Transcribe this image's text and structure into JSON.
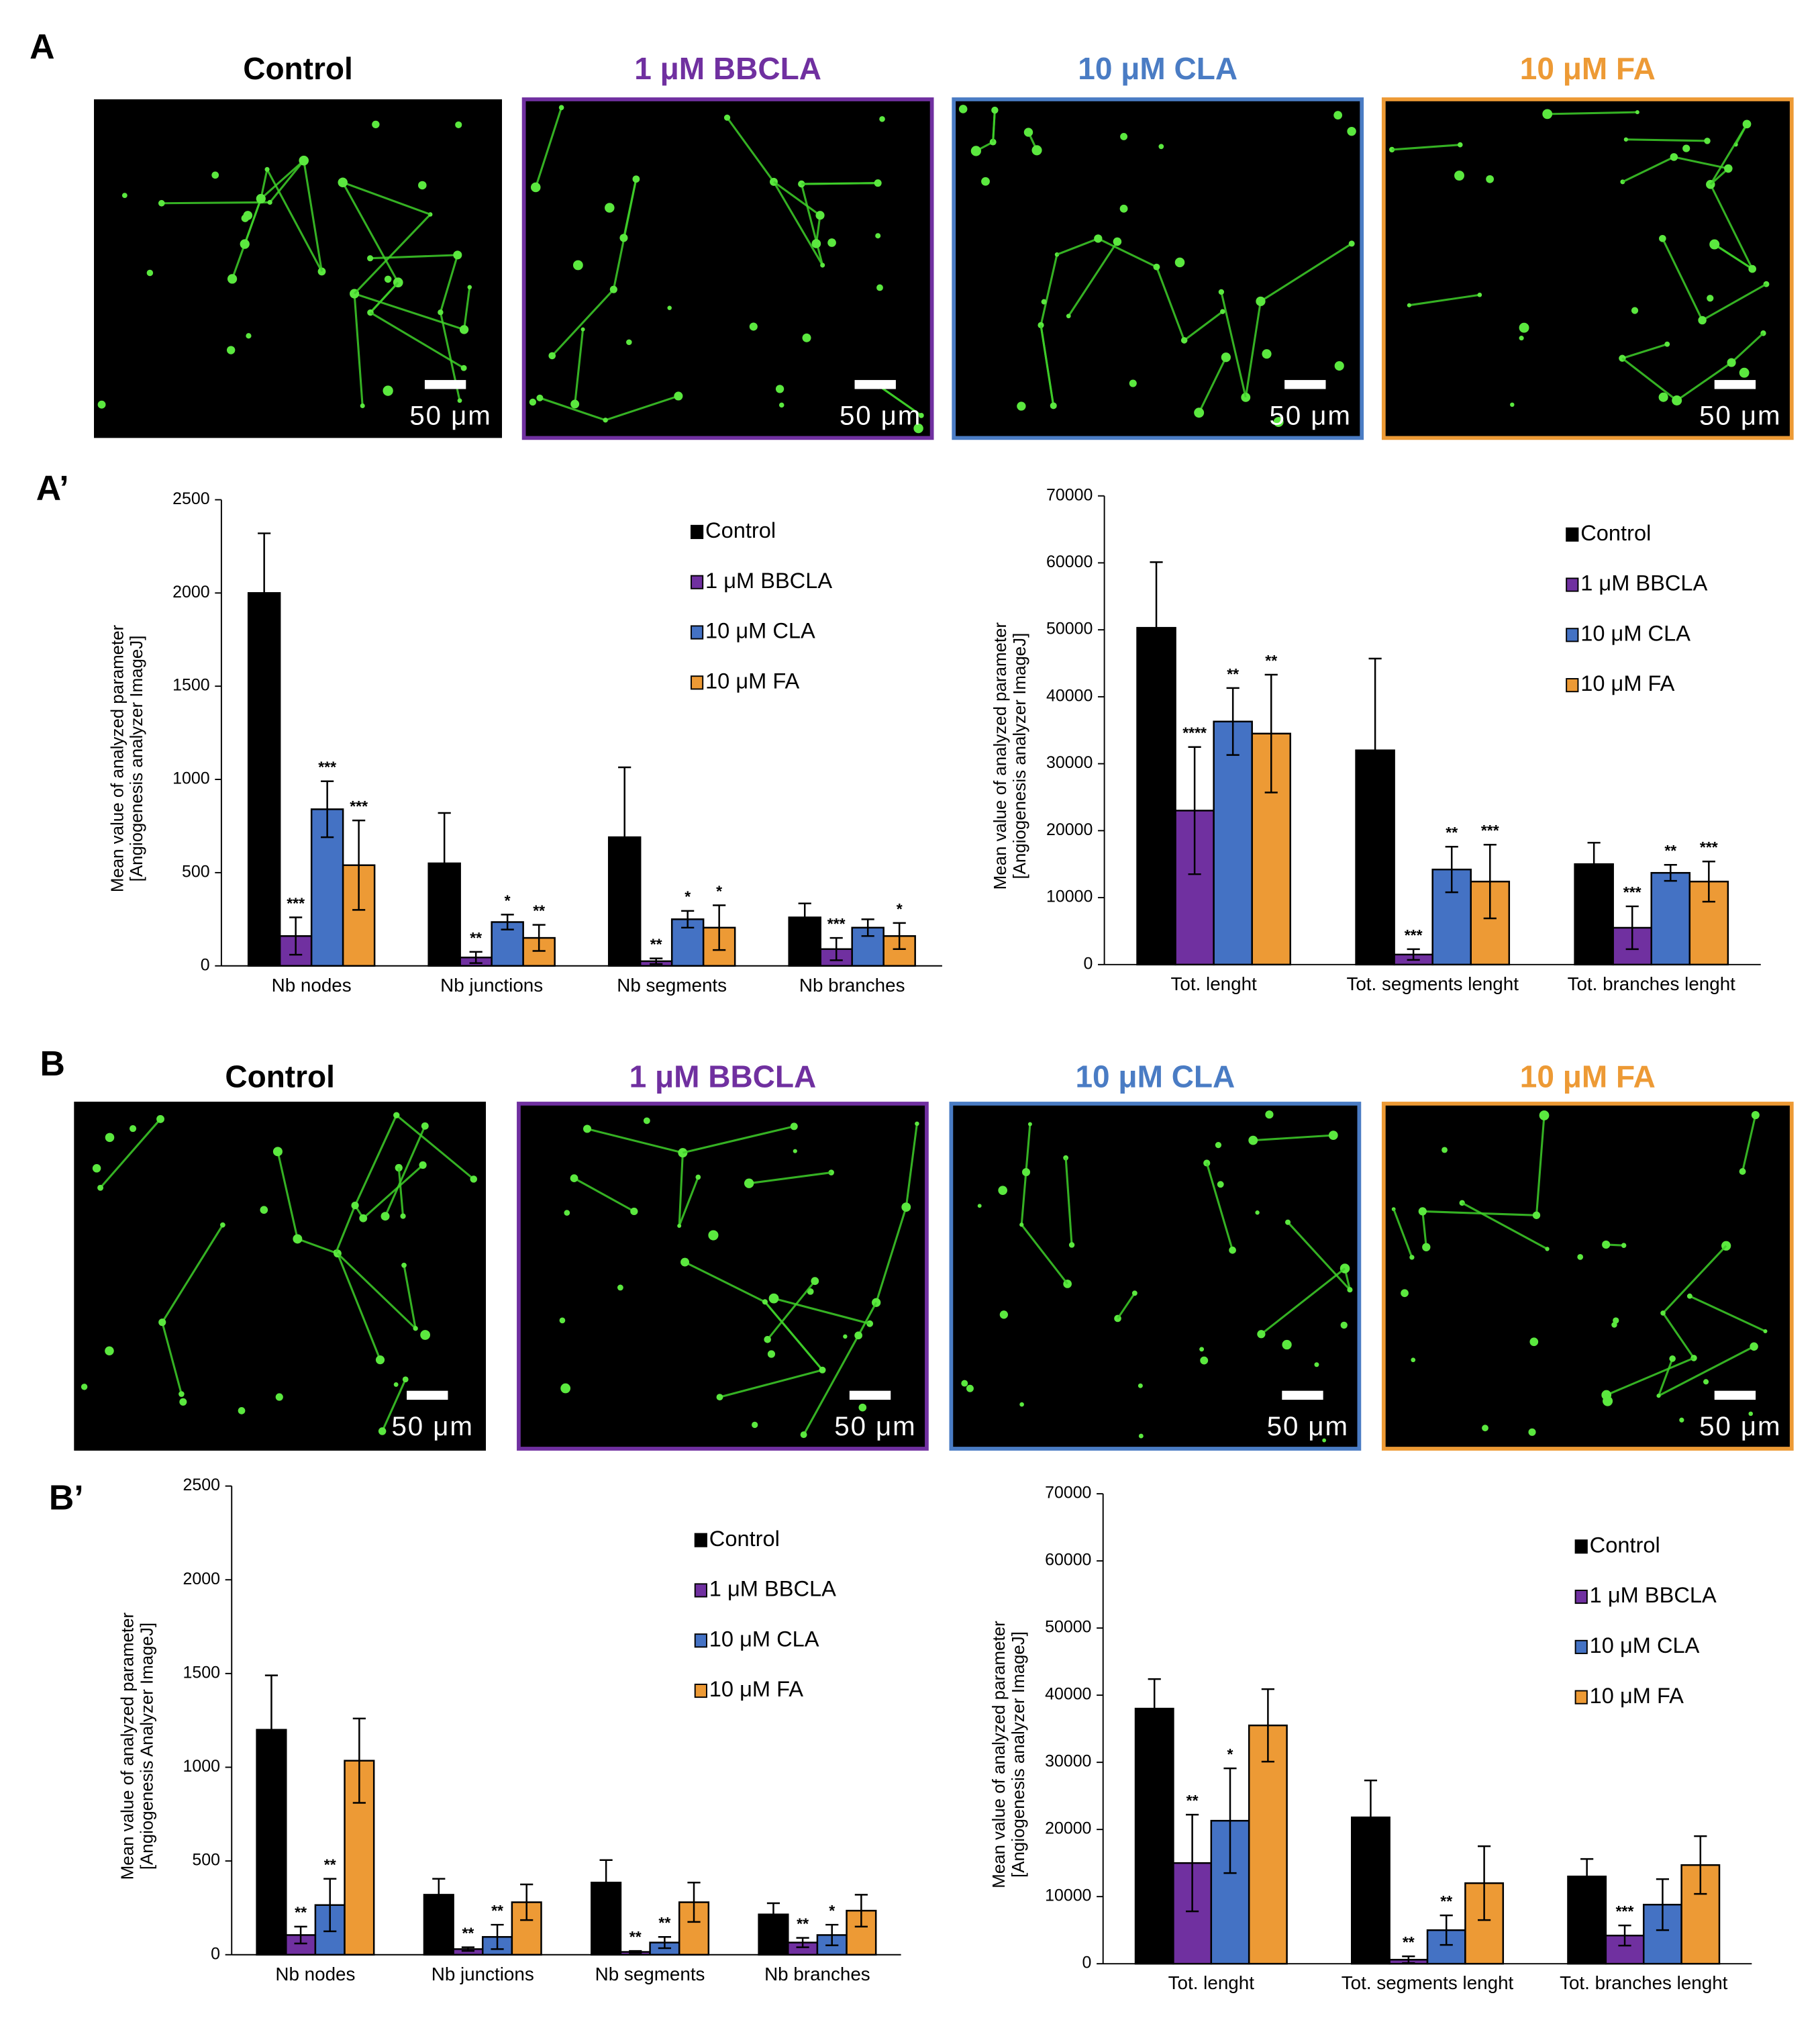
{
  "figure": {
    "labels": [
      "A",
      "A’",
      "B",
      "B’"
    ],
    "rows": [
      {
        "images": [
          {
            "title": "Control",
            "color": "#000000",
            "scale": "50 μm"
          },
          {
            "title": "1 μM BBCLA",
            "color": "#7030a0",
            "scale": "50 μm"
          },
          {
            "title": "10 μM CLA",
            "color": "#4a7cc4",
            "scale": "50 μm"
          },
          {
            "title": "10 μM FA",
            "color": "#ed9a35",
            "scale": "50 μm"
          }
        ]
      },
      {
        "images": [
          {
            "title": "Control",
            "color": "#000000",
            "scale": "50 μm"
          },
          {
            "title": "1 μM BBCLA",
            "color": "#7030a0",
            "scale": "50 μm"
          },
          {
            "title": "10 μM CLA",
            "color": "#4a7cc4",
            "scale": "50 μm"
          },
          {
            "title": "10 μM FA",
            "color": "#ed9a35",
            "scale": "50 μm"
          }
        ]
      }
    ]
  },
  "chart_data": [
    {
      "type": "bar",
      "ylabel": [
        "Mean value of analyzed parameter",
        "[Angiogenesis analyzer ImageJ]"
      ],
      "categories": [
        "Nb nodes",
        "Nb junctions",
        "Nb segments",
        "Nb branches"
      ],
      "ylim": [
        0,
        2500
      ],
      "yticks": [
        0,
        500,
        1000,
        1500,
        2000,
        2500
      ],
      "legend": "upper right",
      "series": [
        {
          "name": "Control",
          "color": "#000000",
          "values": [
            2000,
            550,
            690,
            260
          ],
          "errors": [
            320,
            270,
            375,
            75
          ],
          "annotations": [
            null,
            null,
            null,
            null
          ]
        },
        {
          "name": "1 μM BBCLA",
          "color": "#7030a0",
          "values": [
            160,
            45,
            25,
            90
          ],
          "errors": [
            100,
            30,
            15,
            60
          ],
          "annotations": [
            "***",
            "**",
            "**",
            "***"
          ]
        },
        {
          "name": "10 μM CLA",
          "color": "#4472c4",
          "values": [
            840,
            235,
            250,
            205
          ],
          "errors": [
            150,
            40,
            45,
            45
          ],
          "annotations": [
            "***",
            "*",
            "*",
            null
          ]
        },
        {
          "name": "10 μM FA",
          "color": "#ed9a35",
          "values": [
            540,
            150,
            205,
            160
          ],
          "errors": [
            240,
            70,
            120,
            70
          ],
          "annotations": [
            "***",
            "**",
            "*",
            "*"
          ]
        }
      ]
    },
    {
      "type": "bar",
      "ylabel": [
        "Mean value of analyzed parameter",
        "[Angiogenesis analyzer ImageJ]"
      ],
      "categories": [
        "Tot. lenght",
        "Tot. segments lenght",
        "Tot. branches lenght"
      ],
      "ylim": [
        0,
        70000
      ],
      "yticks": [
        0,
        10000,
        20000,
        30000,
        40000,
        50000,
        60000,
        70000
      ],
      "legend": "upper right",
      "series": [
        {
          "name": "Control",
          "color": "#000000",
          "values": [
            50300,
            32000,
            15000
          ],
          "errors": [
            9800,
            13700,
            3200
          ],
          "annotations": [
            null,
            null,
            null
          ]
        },
        {
          "name": "1 μM BBCLA",
          "color": "#7030a0",
          "values": [
            23000,
            1500,
            5500
          ],
          "errors": [
            9500,
            800,
            3200
          ],
          "annotations": [
            "****",
            "***",
            "***"
          ]
        },
        {
          "name": "10 μM CLA",
          "color": "#4472c4",
          "values": [
            36300,
            14200,
            13700
          ],
          "errors": [
            5000,
            3400,
            1200
          ],
          "annotations": [
            "**",
            "**",
            "**"
          ]
        },
        {
          "name": "10 μM FA",
          "color": "#ed9a35",
          "values": [
            34500,
            12400,
            12400
          ],
          "errors": [
            8800,
            5500,
            3000
          ],
          "annotations": [
            "**",
            "***",
            "***"
          ]
        }
      ]
    },
    {
      "type": "bar",
      "ylabel": [
        "Mean value of analyzed parameter",
        "[Angiogenesis Analyzer ImageJ]"
      ],
      "categories": [
        "Nb nodes",
        "Nb junctions",
        "Nb segments",
        "Nb branches"
      ],
      "ylim": [
        0,
        2500
      ],
      "yticks": [
        0,
        500,
        1000,
        1500,
        2000,
        2500
      ],
      "legend": "upper right",
      "series": [
        {
          "name": "Control",
          "color": "#000000",
          "values": [
            1200,
            320,
            385,
            215
          ],
          "errors": [
            290,
            85,
            120,
            60
          ],
          "annotations": [
            null,
            null,
            null,
            null
          ]
        },
        {
          "name": "1 μM BBCLA",
          "color": "#7030a0",
          "values": [
            105,
            30,
            15,
            65
          ],
          "errors": [
            45,
            10,
            5,
            25
          ],
          "annotations": [
            "**",
            "**",
            "**",
            "**"
          ]
        },
        {
          "name": "10 μM CLA",
          "color": "#4472c4",
          "values": [
            265,
            95,
            65,
            105
          ],
          "errors": [
            140,
            65,
            30,
            55
          ],
          "annotations": [
            "**",
            "**",
            "**",
            "*"
          ]
        },
        {
          "name": "10 μM FA",
          "color": "#ed9a35",
          "values": [
            1035,
            280,
            280,
            235
          ],
          "errors": [
            225,
            95,
            105,
            85
          ],
          "annotations": [
            null,
            null,
            null,
            null
          ]
        }
      ]
    },
    {
      "type": "bar",
      "ylabel": [
        "Mean value of analyzed parameter",
        "[Angiogenesis analyzer ImageJ]"
      ],
      "categories": [
        "Tot. lenght",
        "Tot. segments lenght",
        "Tot. branches lenght"
      ],
      "ylim": [
        0,
        70000
      ],
      "yticks": [
        0,
        10000,
        20000,
        30000,
        40000,
        50000,
        60000,
        70000
      ],
      "legend": "upper right",
      "series": [
        {
          "name": "Control",
          "color": "#000000",
          "values": [
            38000,
            21800,
            13000
          ],
          "errors": [
            4400,
            5500,
            2600
          ],
          "annotations": [
            null,
            null,
            null
          ]
        },
        {
          "name": "1 μM BBCLA",
          "color": "#7030a0",
          "values": [
            15000,
            600,
            4200
          ],
          "errors": [
            7200,
            500,
            1500
          ],
          "annotations": [
            "**",
            "**",
            "***"
          ]
        },
        {
          "name": "10 μM CLA",
          "color": "#4472c4",
          "values": [
            21300,
            5000,
            8800
          ],
          "errors": [
            7800,
            2200,
            3800
          ],
          "annotations": [
            "*",
            "**",
            null
          ]
        },
        {
          "name": "10 μM FA",
          "color": "#ed9a35",
          "values": [
            35500,
            12000,
            14700
          ],
          "errors": [
            5400,
            5500,
            4300
          ],
          "annotations": [
            null,
            null,
            null
          ]
        }
      ]
    }
  ]
}
